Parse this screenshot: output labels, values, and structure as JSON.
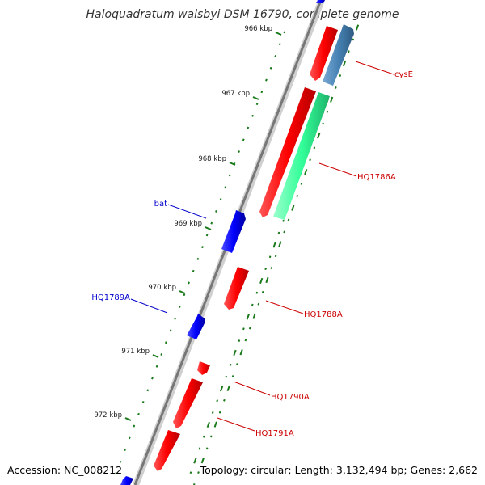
{
  "title": "Haloquadratum walsbyi DSM 16790, complete genome",
  "footer": {
    "accession": "Accession: NC_008212",
    "summary": "Topology: circular; Length: 3,132,494 bp; Genes: 2,662"
  },
  "colors": {
    "forward_gene": "#ff0000",
    "reverse_gene": "#0000ff",
    "rna_gene": "#33ff99",
    "other_gene": "#4682b4",
    "backbone": "#888888",
    "tick": "#1a7a1a",
    "forward_label": "#cc0000",
    "reverse_label": "#0000cc"
  },
  "scale_ticks": [
    {
      "label": "966 kbp"
    },
    {
      "label": "967 kbp"
    },
    {
      "label": "968 kbp"
    },
    {
      "label": "969 kbp"
    },
    {
      "label": "970 kbp"
    },
    {
      "label": "971 kbp"
    },
    {
      "label": "972 kbp"
    }
  ],
  "gene_labels": [
    {
      "name": "cysE",
      "strand": "forward"
    },
    {
      "name": "HQ1786A",
      "strand": "forward"
    },
    {
      "name": "bat",
      "strand": "reverse"
    },
    {
      "name": "HQ1788A",
      "strand": "forward"
    },
    {
      "name": "HQ1789A",
      "strand": "reverse"
    },
    {
      "name": "HQ1790A",
      "strand": "forward"
    },
    {
      "name": "HQ1791A",
      "strand": "forward"
    }
  ]
}
